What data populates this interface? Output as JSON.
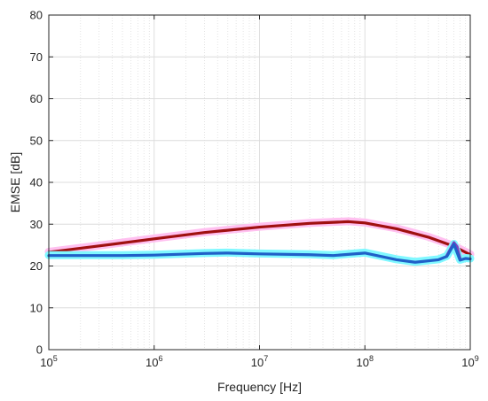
{
  "chart_data": {
    "type": "line",
    "xlabel": "Frequency [Hz]",
    "ylabel": "EMSE [dB]",
    "x_scale": "log",
    "xlim": [
      100000,
      1000000000
    ],
    "ylim": [
      0,
      80
    ],
    "x_ticks": [
      {
        "base": "10",
        "exp": "5",
        "value": 100000
      },
      {
        "base": "10",
        "exp": "6",
        "value": 1000000
      },
      {
        "base": "10",
        "exp": "7",
        "value": 10000000
      },
      {
        "base": "10",
        "exp": "8",
        "value": 100000000
      },
      {
        "base": "10",
        "exp": "9",
        "value": 1000000000
      }
    ],
    "y_ticks": [
      "0",
      "10",
      "20",
      "30",
      "40",
      "50",
      "60",
      "70",
      "80"
    ],
    "grid": true,
    "minor_grid": true,
    "series": [
      {
        "color": "#FFC0F0",
        "line_width": 9,
        "points": [
          [
            100000,
            23.4
          ],
          [
            300000,
            24.9
          ],
          [
            1000000,
            26.6
          ],
          [
            3000000,
            28.1
          ],
          [
            10000000,
            29.4
          ],
          [
            30000000,
            30.3
          ],
          [
            70000000,
            30.7
          ],
          [
            100000000,
            30.4
          ],
          [
            200000000,
            29.0
          ],
          [
            400000000,
            27.0
          ],
          [
            700000000,
            24.8
          ],
          [
            1000000000,
            22.8
          ]
        ]
      },
      {
        "color": "#A01010",
        "line_width": 3.2,
        "points": [
          [
            100000,
            23.3
          ],
          [
            300000,
            24.8
          ],
          [
            1000000,
            26.5
          ],
          [
            3000000,
            28.0
          ],
          [
            10000000,
            29.3
          ],
          [
            30000000,
            30.2
          ],
          [
            70000000,
            30.6
          ],
          [
            100000000,
            30.3
          ],
          [
            200000000,
            28.9
          ],
          [
            400000000,
            26.9
          ],
          [
            700000000,
            24.7
          ],
          [
            1000000000,
            22.7
          ]
        ]
      },
      {
        "color": "#80F8FF",
        "line_width": 9,
        "points": [
          [
            100000,
            22.6
          ],
          [
            500000,
            22.6
          ],
          [
            1000000,
            22.7
          ],
          [
            3000000,
            23.1
          ],
          [
            5000000,
            23.2
          ],
          [
            10000000,
            23.0
          ],
          [
            30000000,
            22.8
          ],
          [
            50000000,
            22.6
          ],
          [
            100000000,
            23.2
          ],
          [
            200000000,
            21.6
          ],
          [
            300000000,
            21.0
          ],
          [
            500000000,
            21.6
          ],
          [
            600000000,
            22.4
          ],
          [
            700000000,
            25.3
          ],
          [
            800000000,
            21.5
          ],
          [
            900000000,
            21.9
          ],
          [
            1000000000,
            21.8
          ]
        ]
      },
      {
        "color": "#8040C0",
        "line_width": 3.2,
        "points": [
          [
            600000000,
            22.5
          ],
          [
            700000000,
            25.6
          ],
          [
            750000000,
            24.6
          ],
          [
            800000000,
            21.8
          ]
        ]
      },
      {
        "color": "#2060C8",
        "line_width": 3.2,
        "points": [
          [
            100000,
            22.5
          ],
          [
            500000,
            22.5
          ],
          [
            1000000,
            22.6
          ],
          [
            3000000,
            23.0
          ],
          [
            5000000,
            23.1
          ],
          [
            10000000,
            22.9
          ],
          [
            30000000,
            22.7
          ],
          [
            50000000,
            22.5
          ],
          [
            100000000,
            23.1
          ],
          [
            200000000,
            21.5
          ],
          [
            300000000,
            20.9
          ],
          [
            500000000,
            21.5
          ],
          [
            600000000,
            22.3
          ],
          [
            700000000,
            25.2
          ],
          [
            800000000,
            21.4
          ],
          [
            900000000,
            21.8
          ],
          [
            1000000000,
            21.7
          ]
        ]
      }
    ]
  }
}
